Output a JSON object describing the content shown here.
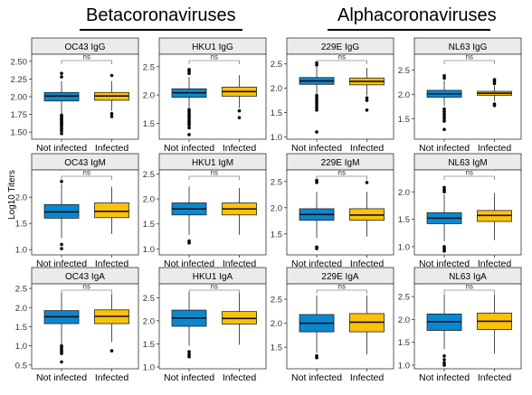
{
  "groups": {
    "beta": "Betacoronaviruses",
    "alpha": "Alphacoronaviruses"
  },
  "ylabel": "Log10 Titers",
  "colors": {
    "not_infected": "#0b87d0",
    "infected": "#fcc10d",
    "strip": "#ebebeb"
  },
  "chart_data": [
    {
      "type": "box",
      "title": "OC43 IgG",
      "categories": [
        "Not infected",
        "Infected"
      ],
      "sig": "ns",
      "ylim": [
        1.4,
        2.6
      ],
      "yticks": [
        1.5,
        1.75,
        2.0,
        2.25,
        2.5
      ],
      "ytick_labels": [
        "1.50",
        "1.75",
        "2.00",
        "2.25",
        "2.50"
      ],
      "boxes": [
        {
          "q1": 1.94,
          "median": 2.01,
          "q3": 2.06,
          "whislo": 1.76,
          "whishi": 2.22,
          "outliers_low": [
            1.48,
            1.52,
            1.55,
            1.58,
            1.6,
            1.62,
            1.64,
            1.66,
            1.68,
            1.7,
            1.72,
            1.74
          ],
          "outliers_high": [
            2.28,
            2.33
          ]
        },
        {
          "q1": 1.95,
          "median": 2.01,
          "q3": 2.06,
          "whislo": 1.8,
          "whishi": 2.22,
          "outliers_low": [
            1.72,
            1.76
          ],
          "outliers_high": [
            2.3
          ]
        }
      ]
    },
    {
      "type": "box",
      "title": "HKU1 IgG",
      "categories": [
        "Not infected",
        "Infected"
      ],
      "sig": "ns",
      "ylim": [
        1.22,
        2.72
      ],
      "yticks": [
        1.5,
        2.0,
        2.5
      ],
      "ytick_labels": [
        "1.5",
        "2.0",
        "2.5"
      ],
      "boxes": [
        {
          "q1": 1.96,
          "median": 2.04,
          "q3": 2.11,
          "whislo": 1.77,
          "whishi": 2.32,
          "outliers_low": [
            1.3,
            1.42,
            1.47,
            1.5,
            1.53,
            1.56,
            1.6,
            1.63,
            1.66,
            1.7,
            1.74
          ],
          "outliers_high": [
            2.38,
            2.42,
            2.45
          ]
        },
        {
          "q1": 1.98,
          "median": 2.06,
          "q3": 2.14,
          "whislo": 1.77,
          "whishi": 2.35,
          "outliers_low": [
            1.6,
            1.72
          ],
          "outliers_high": []
        }
      ]
    },
    {
      "type": "box",
      "title": "229E IgG",
      "categories": [
        "Not infected",
        "Infected"
      ],
      "sig": "ns",
      "ylim": [
        0.95,
        2.7
      ],
      "yticks": [
        1.0,
        1.5,
        2.0,
        2.5
      ],
      "ytick_labels": [
        "1.0",
        "1.5",
        "2.0",
        "2.5"
      ],
      "boxes": [
        {
          "q1": 2.08,
          "median": 2.15,
          "q3": 2.22,
          "whislo": 1.88,
          "whishi": 2.44,
          "outliers_low": [
            1.1,
            1.55,
            1.6,
            1.65,
            1.7,
            1.75,
            1.8,
            1.85
          ],
          "outliers_high": [
            2.48,
            2.52
          ]
        },
        {
          "q1": 2.07,
          "median": 2.14,
          "q3": 2.21,
          "whislo": 1.85,
          "whishi": 2.42,
          "outliers_low": [
            1.55,
            1.75,
            1.8
          ],
          "outliers_high": []
        }
      ]
    },
    {
      "type": "box",
      "title": "NL63 IgG",
      "categories": [
        "Not infected",
        "Infected"
      ],
      "sig": "ns",
      "ylim": [
        1.08,
        2.82
      ],
      "yticks": [
        1.5,
        2.0,
        2.5
      ],
      "ytick_labels": [
        "1.5",
        "2.0",
        "2.5"
      ],
      "boxes": [
        {
          "q1": 1.94,
          "median": 2.01,
          "q3": 2.08,
          "whislo": 1.76,
          "whishi": 2.28,
          "outliers_low": [
            1.28,
            1.45,
            1.5,
            1.55,
            1.6,
            1.65,
            1.7
          ],
          "outliers_high": [
            2.33,
            2.38
          ]
        },
        {
          "q1": 1.98,
          "median": 2.02,
          "q3": 2.06,
          "whislo": 1.86,
          "whishi": 2.18,
          "outliers_low": [
            1.77,
            1.8
          ],
          "outliers_high": [
            2.22,
            2.26,
            2.3
          ]
        }
      ]
    },
    {
      "type": "box",
      "title": "OC43 IgM",
      "categories": [
        "Not infected",
        "Infected"
      ],
      "sig": "ns",
      "ylim": [
        0.9,
        2.52
      ],
      "yticks": [
        1.0,
        1.5,
        2.0
      ],
      "ytick_labels": [
        "1.0",
        "1.5",
        "2.0"
      ],
      "boxes": [
        {
          "q1": 1.6,
          "median": 1.72,
          "q3": 1.86,
          "whislo": 1.22,
          "whishi": 2.25,
          "outliers_low": [
            1.02,
            1.1
          ],
          "outliers_high": [
            2.3
          ]
        },
        {
          "q1": 1.61,
          "median": 1.73,
          "q3": 1.89,
          "whislo": 1.3,
          "whishi": 2.2,
          "outliers_low": [],
          "outliers_high": []
        }
      ]
    },
    {
      "type": "box",
      "title": "HKU1 IgM",
      "categories": [
        "Not infected",
        "Infected"
      ],
      "sig": "ns",
      "ylim": [
        0.88,
        2.58
      ],
      "yticks": [
        1.0,
        1.5,
        2.0,
        2.5
      ],
      "ytick_labels": [
        "1.0",
        "1.5",
        "2.0",
        "2.5"
      ],
      "boxes": [
        {
          "q1": 1.68,
          "median": 1.8,
          "q3": 1.92,
          "whislo": 1.28,
          "whishi": 2.25,
          "outliers_low": [
            1.12,
            1.16
          ],
          "outliers_high": []
        },
        {
          "q1": 1.68,
          "median": 1.8,
          "q3": 1.92,
          "whislo": 1.28,
          "whishi": 2.22,
          "outliers_low": [],
          "outliers_high": []
        }
      ]
    },
    {
      "type": "box",
      "title": "229E IgM",
      "categories": [
        "Not infected",
        "Infected"
      ],
      "sig": "ns",
      "ylim": [
        1.1,
        2.72
      ],
      "yticks": [
        1.5,
        2.0,
        2.5
      ],
      "ytick_labels": [
        "1.5",
        "2.0",
        "2.5"
      ],
      "boxes": [
        {
          "q1": 1.76,
          "median": 1.87,
          "q3": 1.98,
          "whislo": 1.42,
          "whishi": 2.3,
          "outliers_low": [
            1.22,
            1.25
          ],
          "outliers_high": [
            2.48,
            2.52
          ]
        },
        {
          "q1": 1.76,
          "median": 1.86,
          "q3": 1.98,
          "whislo": 1.45,
          "whishi": 2.3,
          "outliers_low": [],
          "outliers_high": [
            2.48
          ]
        }
      ]
    },
    {
      "type": "box",
      "title": "NL63 IgM",
      "categories": [
        "Not infected",
        "Infected"
      ],
      "sig": "ns",
      "ylim": [
        0.85,
        2.4
      ],
      "yticks": [
        1.0,
        1.5,
        2.0
      ],
      "ytick_labels": [
        "1.0",
        "1.5",
        "2.0"
      ],
      "boxes": [
        {
          "q1": 1.42,
          "median": 1.52,
          "q3": 1.62,
          "whislo": 1.1,
          "whishi": 1.95,
          "outliers_low": [
            0.92,
            0.96,
            1.0
          ],
          "outliers_high": [
            2.0,
            2.04,
            2.08
          ]
        },
        {
          "q1": 1.46,
          "median": 1.57,
          "q3": 1.66,
          "whislo": 1.12,
          "whishi": 1.98,
          "outliers_low": [],
          "outliers_high": []
        }
      ]
    },
    {
      "type": "box",
      "title": "OC43 IgA",
      "categories": [
        "Not infected",
        "Infected"
      ],
      "sig": "ns",
      "ylim": [
        0.4,
        2.62
      ],
      "yticks": [
        0.5,
        1.0,
        1.5,
        2.0,
        2.5
      ],
      "ytick_labels": [
        "0.5",
        "1.0",
        "1.5",
        "2.0",
        "2.5"
      ],
      "boxes": [
        {
          "q1": 1.58,
          "median": 1.76,
          "q3": 1.92,
          "whislo": 1.05,
          "whishi": 2.38,
          "outliers_low": [
            0.58,
            0.8,
            0.85,
            0.9,
            0.95,
            1.0
          ],
          "outliers_high": []
        },
        {
          "q1": 1.58,
          "median": 1.77,
          "q3": 1.94,
          "whislo": 1.1,
          "whishi": 2.35,
          "outliers_low": [
            0.87
          ],
          "outliers_high": []
        }
      ]
    },
    {
      "type": "box",
      "title": "HKU1 IgA",
      "categories": [
        "Not infected",
        "Infected"
      ],
      "sig": "ns",
      "ylim": [
        0.96,
        2.8
      ],
      "yticks": [
        1.0,
        1.5,
        2.0,
        2.5
      ],
      "ytick_labels": [
        "1.0",
        "1.5",
        "2.0",
        "2.5"
      ],
      "boxes": [
        {
          "q1": 1.88,
          "median": 2.06,
          "q3": 2.23,
          "whislo": 1.46,
          "whishi": 2.62,
          "outliers_low": [
            1.22,
            1.27,
            1.33
          ],
          "outliers_high": []
        },
        {
          "q1": 1.93,
          "median": 2.05,
          "q3": 2.2,
          "whislo": 1.48,
          "whishi": 2.6,
          "outliers_low": [],
          "outliers_high": []
        }
      ]
    },
    {
      "type": "box",
      "title": "229E IgA",
      "categories": [
        "Not infected",
        "Infected"
      ],
      "sig": "ns",
      "ylim": [
        1.05,
        2.82
      ],
      "yticks": [
        1.5,
        2.0,
        2.5
      ],
      "ytick_labels": [
        "1.5",
        "2.0",
        "2.5"
      ],
      "boxes": [
        {
          "q1": 1.82,
          "median": 2.0,
          "q3": 2.18,
          "whislo": 1.38,
          "whishi": 2.58,
          "outliers_low": [
            1.28,
            1.32
          ],
          "outliers_high": []
        },
        {
          "q1": 1.82,
          "median": 2.02,
          "q3": 2.2,
          "whislo": 1.35,
          "whishi": 2.58,
          "outliers_low": [],
          "outliers_high": []
        }
      ]
    },
    {
      "type": "box",
      "title": "NL63 IgA",
      "categories": [
        "Not infected",
        "Infected"
      ],
      "sig": "ns",
      "ylim": [
        0.92,
        2.78
      ],
      "yticks": [
        1.0,
        1.5,
        2.0,
        2.5
      ],
      "ytick_labels": [
        "1.0",
        "1.5",
        "2.0",
        "2.5"
      ],
      "boxes": [
        {
          "q1": 1.76,
          "median": 1.95,
          "q3": 2.12,
          "whislo": 1.35,
          "whishi": 2.55,
          "outliers_low": [
            1.0,
            1.05,
            1.12,
            1.2
          ],
          "outliers_high": []
        },
        {
          "q1": 1.78,
          "median": 1.96,
          "q3": 2.14,
          "whislo": 1.25,
          "whishi": 2.55,
          "outliers_low": [],
          "outliers_high": []
        }
      ]
    }
  ]
}
